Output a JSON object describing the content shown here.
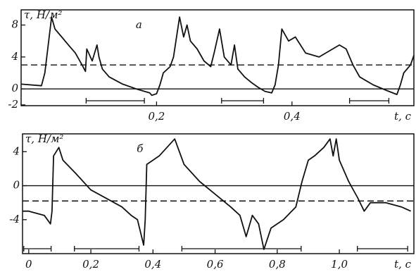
{
  "chart_data": [
    {
      "type": "line",
      "panel_label": "a",
      "ylabel": "τ, Н/м²",
      "xlabel": "t, c",
      "color": "#111",
      "xlim": [
        0,
        0.58
      ],
      "ylim": [
        -2.1,
        9.9
      ],
      "xticks": [
        {
          "value": 0.2,
          "label": "0,2"
        },
        {
          "value": 0.4,
          "label": "0,4"
        }
      ],
      "yticks": [
        8,
        4,
        0,
        -2
      ],
      "hlines": [
        {
          "value": 0,
          "style": "solid"
        },
        {
          "value": 3,
          "style": "dashed"
        }
      ],
      "intervals": [
        {
          "start": 0.096,
          "end": 0.182
        },
        {
          "start": 0.296,
          "end": 0.358
        },
        {
          "start": 0.485,
          "end": 0.543
        }
      ],
      "x": [
        0,
        0.03,
        0.035,
        0.045,
        0.05,
        0.06,
        0.07,
        0.08,
        0.09,
        0.095,
        0.097,
        0.105,
        0.112,
        0.115,
        0.12,
        0.13,
        0.15,
        0.17,
        0.19,
        0.193,
        0.2,
        0.205,
        0.21,
        0.22,
        0.225,
        0.234,
        0.24,
        0.245,
        0.25,
        0.26,
        0.27,
        0.28,
        0.285,
        0.293,
        0.3,
        0.31,
        0.315,
        0.32,
        0.33,
        0.34,
        0.35,
        0.36,
        0.37,
        0.375,
        0.38,
        0.385,
        0.395,
        0.405,
        0.42,
        0.44,
        0.46,
        0.47,
        0.48,
        0.49,
        0.5,
        0.52,
        0.54,
        0.555,
        0.56,
        0.565,
        0.575,
        0.58
      ],
      "values": [
        0.6,
        0.4,
        2,
        9,
        7.5,
        6.5,
        5.5,
        4.5,
        3,
        2.2,
        5,
        3.5,
        5.5,
        4,
        2.5,
        1.5,
        0.6,
        0,
        -0.5,
        -0.8,
        -0.6,
        0.5,
        2,
        2.8,
        4,
        9,
        6.5,
        8,
        6,
        5,
        3.5,
        2.8,
        4.5,
        7.5,
        4,
        3,
        5.5,
        2.5,
        1.5,
        0.8,
        0.2,
        -0.3,
        -0.5,
        0.5,
        3,
        7.5,
        6,
        6.5,
        4.5,
        4,
        5,
        5.5,
        5,
        3,
        1.5,
        0.5,
        -0.2,
        -0.7,
        0.5,
        2,
        3,
        4.2
      ]
    },
    {
      "type": "line",
      "panel_label": "б",
      "ylabel": "τ, Н/м²",
      "xlabel": "t, c",
      "color": "#111",
      "xlim": [
        -0.02,
        1.24
      ],
      "ylim": [
        -8,
        6.1
      ],
      "xticks": [
        0,
        {
          "value": 0.2,
          "label": "0,2"
        },
        {
          "value": 0.4,
          "label": "0,4"
        },
        {
          "value": 0.6,
          "label": "0,6"
        },
        {
          "value": 0.8,
          "label": "0,8"
        },
        {
          "value": 1.0,
          "label": "1,0"
        }
      ],
      "yticks": [
        4,
        0,
        -4
      ],
      "hlines": [
        {
          "value": 0,
          "style": "solid"
        },
        {
          "value": -1.8,
          "style": "dashed"
        }
      ],
      "intervals": [
        {
          "start": -0.016,
          "end": 0.072
        },
        {
          "start": 0.147,
          "end": 0.355
        },
        {
          "start": 0.493,
          "end": 0.877
        },
        {
          "start": 1.058,
          "end": 1.22
        }
      ],
      "x": [
        -0.02,
        0,
        0.05,
        0.07,
        0.075,
        0.08,
        0.097,
        0.11,
        0.15,
        0.2,
        0.25,
        0.3,
        0.33,
        0.35,
        0.37,
        0.375,
        0.38,
        0.4,
        0.42,
        0.47,
        0.5,
        0.55,
        0.6,
        0.65,
        0.68,
        0.7,
        0.72,
        0.74,
        0.757,
        0.78,
        0.82,
        0.86,
        0.88,
        0.9,
        0.92,
        0.95,
        0.97,
        0.98,
        0.99,
        1.0,
        1.03,
        1.06,
        1.08,
        1.1,
        1.15,
        1.2,
        1.23
      ],
      "values": [
        -3,
        -3,
        -3.5,
        -4.5,
        -3,
        3.5,
        4.5,
        3,
        1.5,
        -0.5,
        -1.5,
        -2.5,
        -3.5,
        -4,
        -7,
        -4,
        2.5,
        3,
        3.5,
        5.5,
        2.5,
        0.5,
        -1,
        -2.5,
        -3.5,
        -6,
        -3.5,
        -4.5,
        -7.5,
        -5,
        -4,
        -2.5,
        0.5,
        3,
        3.5,
        4.5,
        5.5,
        3.5,
        5.5,
        3,
        0.5,
        -1.5,
        -3,
        -2,
        -2,
        -2.5,
        -3
      ]
    }
  ]
}
